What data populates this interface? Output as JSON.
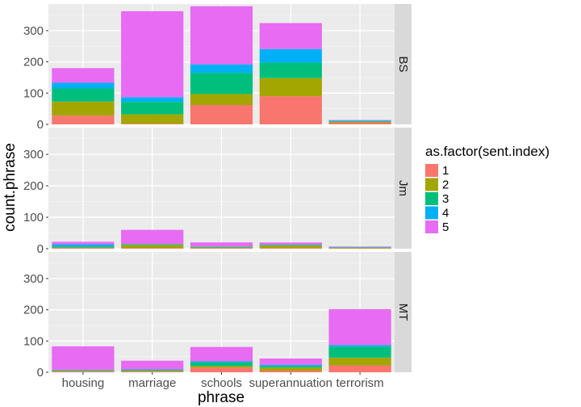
{
  "chart_data": {
    "type": "bar",
    "stacked": true,
    "faceted": "rows",
    "xlabel": "phrase",
    "ylabel": "count.phrase",
    "ylim": [
      0,
      385
    ],
    "yticks": [
      0,
      100,
      200,
      300
    ],
    "grid": true,
    "legend_position": "right",
    "legend": {
      "title": "as.factor(sent.index)",
      "entries": [
        "1",
        "2",
        "3",
        "4",
        "5"
      ],
      "colors": [
        "#F8766D",
        "#A3A500",
        "#00BF7D",
        "#00B0F6",
        "#E76BF3"
      ]
    },
    "categories": [
      "housing",
      "marriage",
      "schools",
      "superannuation",
      "terrorism"
    ],
    "facets": [
      {
        "label": "BS",
        "series": [
          {
            "name": "1",
            "values": [
              28,
              2,
              62,
              90,
              5
            ]
          },
          {
            "name": "2",
            "values": [
              45,
              30,
              35,
              58,
              3
            ]
          },
          {
            "name": "3",
            "values": [
              42,
              40,
              68,
              50,
              2
            ]
          },
          {
            "name": "4",
            "values": [
              18,
              15,
              27,
              43,
              2
            ]
          },
          {
            "name": "5",
            "values": [
              47,
              275,
              186,
              83,
              2
            ]
          }
        ]
      },
      {
        "label": "Jm",
        "series": [
          {
            "name": "1",
            "values": [
              2,
              2,
              2,
              2,
              1
            ]
          },
          {
            "name": "2",
            "values": [
              2,
              10,
              2,
              8,
              2
            ]
          },
          {
            "name": "3",
            "values": [
              3,
              2,
              2,
              2,
              1
            ]
          },
          {
            "name": "4",
            "values": [
              7,
              1,
              1,
              1,
              1
            ]
          },
          {
            "name": "5",
            "values": [
              8,
              45,
              13,
              7,
              2
            ]
          }
        ]
      },
      {
        "label": "MT",
        "series": [
          {
            "name": "1",
            "values": [
              3,
              3,
              15,
              5,
              22
            ]
          },
          {
            "name": "2",
            "values": [
              2,
              2,
              5,
              10,
              25
            ]
          },
          {
            "name": "3",
            "values": [
              2,
              3,
              12,
              5,
              35
            ]
          },
          {
            "name": "4",
            "values": [
              1,
              1,
              3,
              4,
              5
            ]
          },
          {
            "name": "5",
            "values": [
              75,
              28,
              46,
              20,
              115
            ]
          }
        ]
      }
    ]
  }
}
